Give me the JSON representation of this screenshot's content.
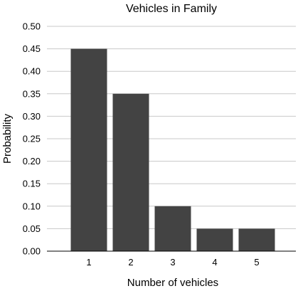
{
  "chart_data": {
    "type": "bar",
    "title": "Vehicles in Family",
    "xlabel": "Number of vehicles",
    "ylabel": "Probability",
    "categories": [
      "1",
      "2",
      "3",
      "4",
      "5"
    ],
    "values": [
      0.45,
      0.35,
      0.1,
      0.05,
      0.05
    ],
    "ylim": [
      0,
      0.5
    ],
    "yticks": [
      "0.00",
      "0.05",
      "0.10",
      "0.15",
      "0.20",
      "0.25",
      "0.30",
      "0.35",
      "0.40",
      "0.45",
      "0.50"
    ],
    "bar_color": "#434343",
    "grid": true,
    "legend": "none"
  }
}
